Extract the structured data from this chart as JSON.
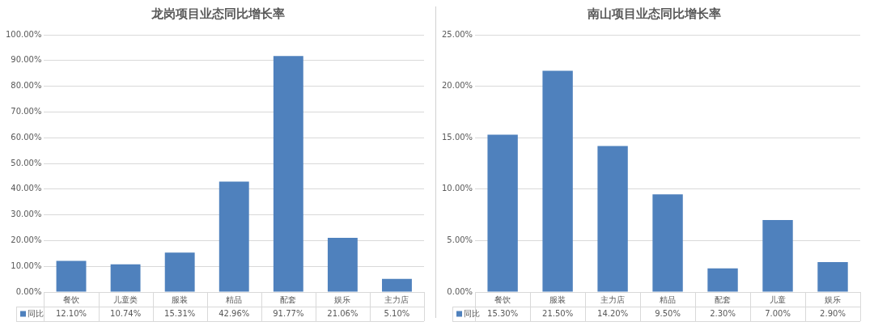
{
  "chart_data": [
    {
      "type": "bar",
      "title": "龙岗项目业态同比增长率",
      "categories": [
        "餐饮",
        "儿童类",
        "服装",
        "精品",
        "配套",
        "娱乐",
        "主力店"
      ],
      "series": [
        {
          "name": "同比",
          "color": "#4f81bd",
          "values": [
            12.1,
            10.74,
            15.31,
            42.96,
            91.77,
            21.06,
            5.1
          ],
          "value_labels": [
            "12.10%",
            "10.74%",
            "15.31%",
            "42.96%",
            "91.77%",
            "21.06%",
            "5.10%"
          ]
        }
      ],
      "ylim": [
        0,
        100
      ],
      "yticks": [
        {
          "value": 0,
          "label": "0.00%"
        },
        {
          "value": 10,
          "label": "10.00%"
        },
        {
          "value": 20,
          "label": "20.00%"
        },
        {
          "value": 30,
          "label": "30.00%"
        },
        {
          "value": 40,
          "label": "40.00%"
        },
        {
          "value": 50,
          "label": "50.00%"
        },
        {
          "value": 60,
          "label": "60.00%"
        },
        {
          "value": 70,
          "label": "70.00%"
        },
        {
          "value": 80,
          "label": "80.00%"
        },
        {
          "value": 90,
          "label": "90.00%"
        },
        {
          "value": 100,
          "label": "100.00%"
        }
      ],
      "grid": "y"
    },
    {
      "type": "bar",
      "title": "南山项目业态同比增长率",
      "categories": [
        "餐饮",
        "服装",
        "主力店",
        "精品",
        "配套",
        "儿童",
        "娱乐"
      ],
      "series": [
        {
          "name": "同比",
          "color": "#4f81bd",
          "values": [
            15.3,
            21.5,
            14.2,
            9.5,
            2.3,
            7.0,
            2.9
          ],
          "value_labels": [
            "15.30%",
            "21.50%",
            "14.20%",
            "9.50%",
            "2.30%",
            "7.00%",
            "2.90%"
          ]
        }
      ],
      "ylim": [
        0,
        25
      ],
      "yticks": [
        {
          "value": 0,
          "label": "0.00%"
        },
        {
          "value": 5,
          "label": "5.00%"
        },
        {
          "value": 10,
          "label": "10.00%"
        },
        {
          "value": 15,
          "label": "15.00%"
        },
        {
          "value": 20,
          "label": "20.00%"
        },
        {
          "value": 25,
          "label": "25.00%"
        }
      ],
      "grid": "y"
    }
  ]
}
